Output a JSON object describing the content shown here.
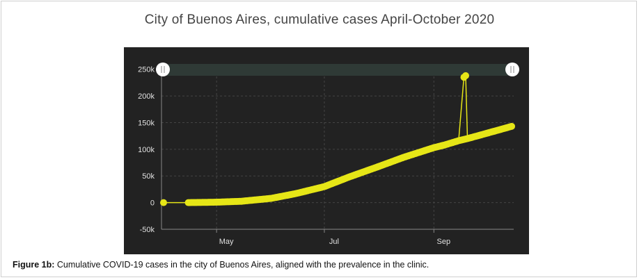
{
  "title": "City of Buenos Aires, cumulative cases April-October 2020",
  "caption": {
    "label": "Figure 1b:",
    "text": " Cumulative COVID-19 cases in the city of Buenos Aires, aligned with the prevalence in the clinic."
  },
  "colors": {
    "background": "#222222",
    "series": "#e6e617",
    "axis_text": "#e0e0e0",
    "grid": "#444444",
    "navigator": "#2f3a36"
  },
  "chart_data": {
    "type": "scatter",
    "title": "City of Buenos Aires, cumulative cases April-October 2020",
    "xlabel": "",
    "ylabel": "",
    "x_ticks": [
      "May",
      "Jul",
      "Sep"
    ],
    "y_ticks": [
      "-50k",
      "0",
      "50k",
      "100k",
      "150k",
      "200k",
      "250k"
    ],
    "ylim": [
      -50000,
      260000
    ],
    "grid": true,
    "legend": "none",
    "range_navigator": true,
    "series": [
      {
        "x": [
          "2020-04-01",
          "2020-04-15",
          "2020-05-01",
          "2020-05-15",
          "2020-06-01",
          "2020-06-15",
          "2020-07-01",
          "2020-07-15",
          "2020-08-01",
          "2020-08-15",
          "2020-09-01",
          "2020-09-07",
          "2020-09-15",
          "2020-09-18",
          "2020-09-19",
          "2020-09-20",
          "2020-10-01",
          "2020-10-15"
        ],
        "values": [
          0,
          0,
          800,
          2500,
          8000,
          17000,
          30000,
          48000,
          68000,
          85000,
          103000,
          108000,
          116000,
          235000,
          238000,
          120000,
          130000,
          143000
        ]
      }
    ]
  }
}
